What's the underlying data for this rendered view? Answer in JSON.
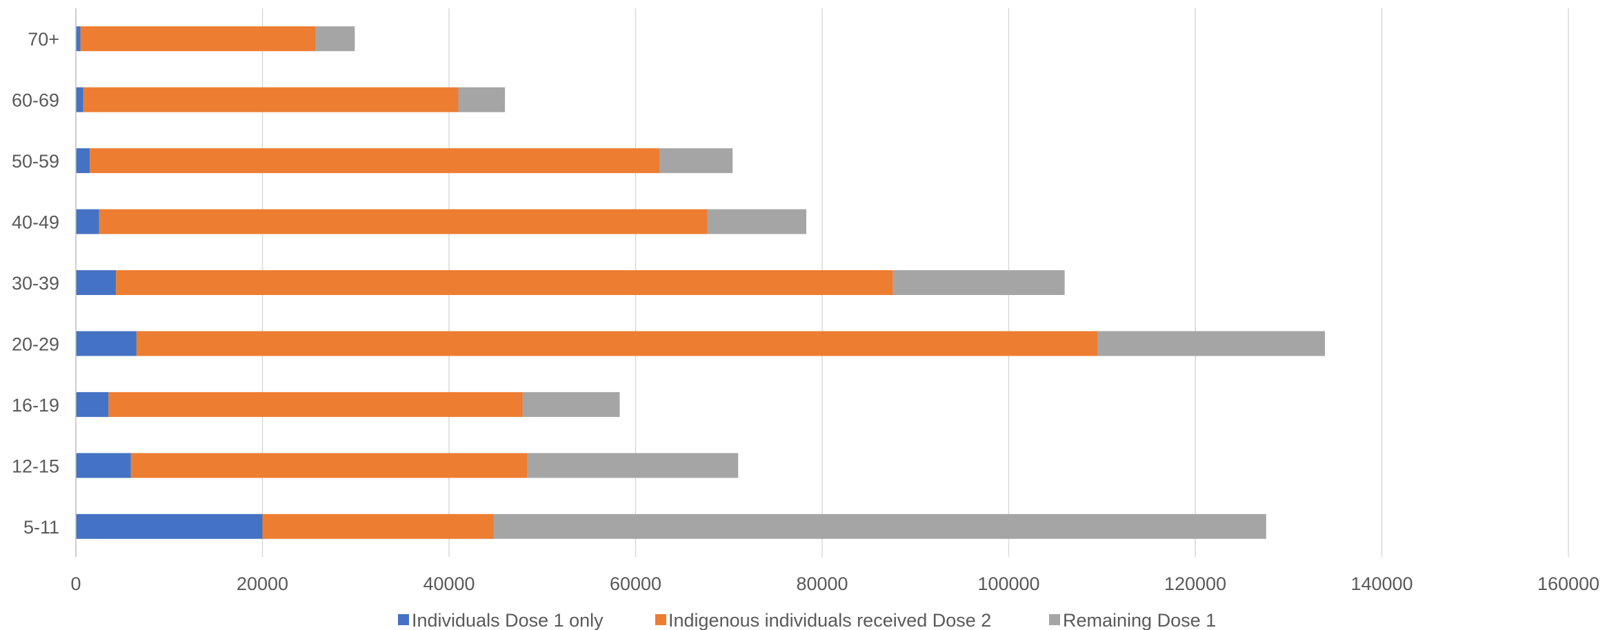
{
  "chart_data": {
    "type": "bar",
    "orientation": "horizontal",
    "stacked": true,
    "categories": [
      "70+",
      "60-69",
      "50-59",
      "40-49",
      "30-39",
      "20-29",
      "16-19",
      "12-15",
      "5-11"
    ],
    "series": [
      {
        "name": "Individuals Dose 1 only",
        "color": "#4472C4",
        "values": [
          500,
          800,
          1500,
          2500,
          4300,
          6500,
          3500,
          5900,
          20000
        ]
      },
      {
        "name": "Indigenous individuals received Dose 2",
        "color": "#ED7D31",
        "values": [
          25200,
          40200,
          61100,
          65200,
          83300,
          103000,
          44400,
          42500,
          24800
        ]
      },
      {
        "name": "Remaining  Dose 1",
        "color": "#A5A5A5",
        "values": [
          4200,
          5000,
          7800,
          10600,
          18400,
          24400,
          10400,
          22600,
          82800
        ]
      }
    ],
    "xlim": [
      0,
      160000
    ],
    "xticks": [
      "0",
      "20000",
      "40000",
      "60000",
      "80000",
      "100000",
      "120000",
      "140000",
      "160000"
    ],
    "title": "",
    "xlabel": "",
    "ylabel": "",
    "grid": "vertical",
    "legend_position": "bottom"
  }
}
